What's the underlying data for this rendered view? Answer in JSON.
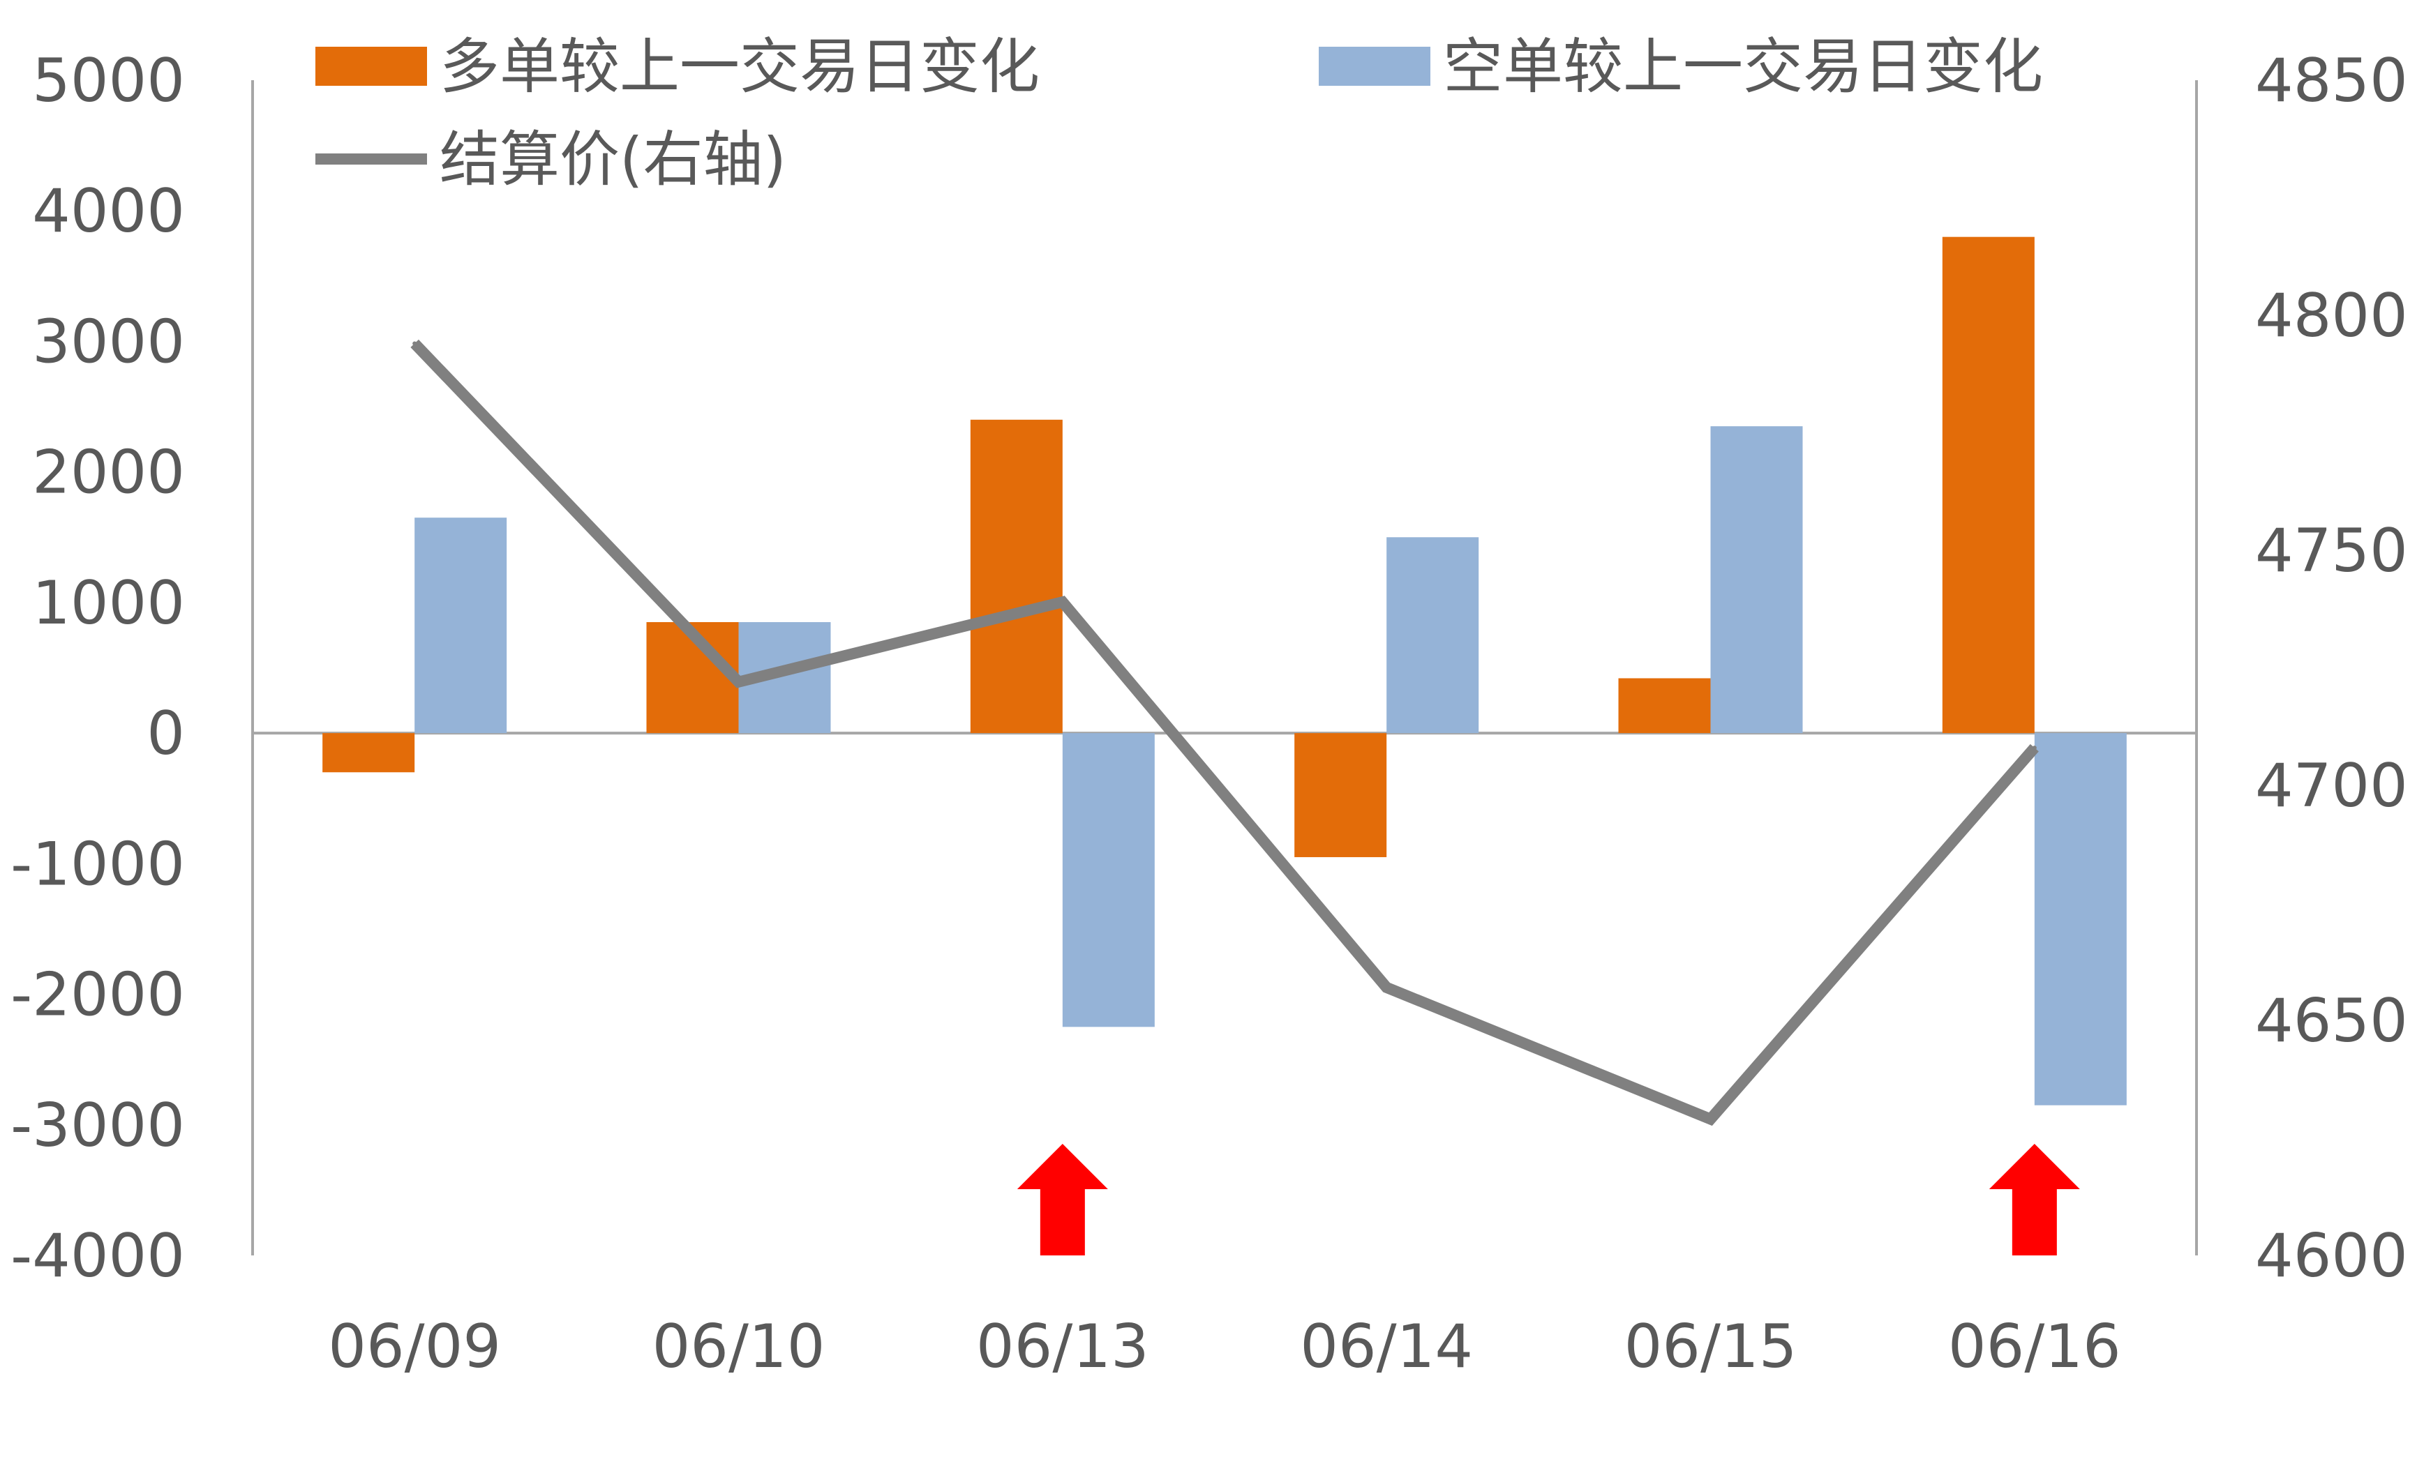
{
  "chart_data": {
    "type": "bar",
    "categories": [
      "06/09",
      "06/10",
      "06/13",
      "06/14",
      "06/15",
      "06/16"
    ],
    "series": [
      {
        "name": "多单较上一交易日变化",
        "kind": "bar",
        "axis": "left",
        "color": "#E36C09",
        "values": [
          -300,
          850,
          2400,
          -950,
          420,
          3800
        ]
      },
      {
        "name": "空单较上一交易日变化",
        "kind": "bar",
        "axis": "left",
        "color": "#95B3D7",
        "values": [
          1650,
          850,
          -2250,
          1500,
          2350,
          -2850
        ]
      },
      {
        "name": "结算价(右轴)",
        "kind": "line",
        "axis": "right",
        "color": "#808080",
        "values": [
          4794,
          4722,
          4739,
          4657,
          4629,
          4708
        ]
      }
    ],
    "y_left": {
      "min": -4000,
      "max": 5000,
      "ticks": [
        5000,
        4000,
        3000,
        2000,
        1000,
        0,
        -1000,
        -2000,
        -3000,
        -4000
      ]
    },
    "y_right": {
      "min": 4600,
      "max": 4850,
      "ticks": [
        4850,
        4800,
        4750,
        4700,
        4650,
        4600
      ]
    },
    "markers": [
      {
        "category": "06/13",
        "shape": "up-arrow",
        "color": "#FF0000"
      },
      {
        "category": "06/16",
        "shape": "up-arrow",
        "color": "#FF0000"
      }
    ],
    "legend_position": "top",
    "grid": false
  }
}
